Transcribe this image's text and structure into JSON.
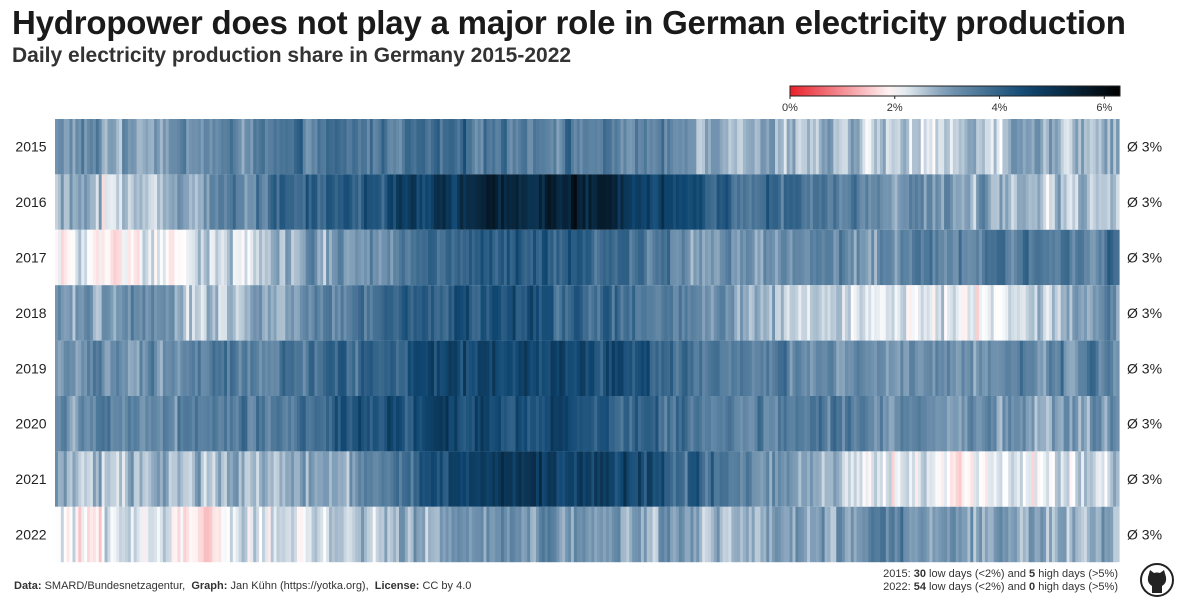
{
  "title": "Hydropower does not play a major role in German electricity production",
  "subtitle": "Daily electricity production share in Germany 2015-2022",
  "legend": {
    "ticks": [
      "0%",
      "2%",
      "4%",
      "6%"
    ],
    "tick_values": [
      0,
      2,
      4,
      6
    ],
    "range": [
      0,
      6.3
    ],
    "colors": {
      "low": "#e8202a",
      "mid": "#ffffff",
      "high": "#000000",
      "steel": "#7797b2",
      "navy": "#104873"
    }
  },
  "chart_data": {
    "type": "heatmap",
    "title": "Hydropower does not play a major role in German electricity production",
    "subtitle": "Daily electricity production share in Germany 2015-2022",
    "xlabel": "",
    "ylabel": "",
    "value_unit": "%",
    "color_range": [
      0,
      6.3
    ],
    "rows": [
      {
        "year": "2015",
        "average": "Ø 3%",
        "monthly_profile": [
          2.9,
          3.2,
          3.4,
          3.6,
          3.7,
          3.6,
          3.3,
          3.0,
          2.6,
          2.4,
          2.6,
          2.8
        ]
      },
      {
        "year": "2016",
        "average": "Ø 3%",
        "monthly_profile": [
          2.1,
          3.0,
          3.8,
          4.2,
          5.0,
          5.5,
          5.1,
          4.0,
          3.6,
          3.2,
          2.9,
          2.6
        ]
      },
      {
        "year": "2017",
        "average": "Ø 3%",
        "monthly_profile": [
          1.8,
          2.1,
          2.8,
          3.3,
          3.9,
          4.0,
          3.6,
          3.1,
          3.3,
          3.2,
          3.4,
          3.7
        ]
      },
      {
        "year": "2018",
        "average": "Ø 3%",
        "monthly_profile": [
          3.4,
          2.6,
          2.8,
          3.6,
          4.3,
          4.2,
          3.6,
          3.0,
          2.5,
          2.2,
          2.1,
          3.0
        ]
      },
      {
        "year": "2019",
        "average": "Ø 3%",
        "monthly_profile": [
          2.9,
          3.3,
          3.5,
          4.0,
          4.6,
          4.6,
          4.4,
          3.5,
          3.2,
          3.0,
          3.2,
          3.4
        ]
      },
      {
        "year": "2020",
        "average": "Ø 3%",
        "monthly_profile": [
          3.1,
          3.4,
          3.6,
          4.2,
          4.5,
          4.4,
          4.0,
          3.5,
          3.5,
          3.3,
          3.2,
          3.1
        ]
      },
      {
        "year": "2021",
        "average": "Ø 3%",
        "monthly_profile": [
          2.5,
          2.8,
          2.6,
          3.2,
          4.6,
          5.0,
          4.6,
          3.6,
          3.0,
          2.1,
          2.0,
          2.4
        ]
      },
      {
        "year": "2022",
        "average": "Ø 3%",
        "monthly_profile": [
          2.3,
          1.9,
          2.2,
          2.6,
          3.0,
          3.2,
          3.0,
          2.8,
          3.0,
          3.2,
          2.9,
          2.8
        ]
      }
    ]
  },
  "footer": {
    "data_label": "Data:",
    "data_value": "SMARD/Bundesnetzagentur,",
    "graph_label": "Graph:",
    "graph_value": "Jan Kühn (https://yotka.org),",
    "license_label": "License:",
    "license_value": "CC by 4.0"
  },
  "notes": [
    {
      "pre": "2015: ",
      "low": "30",
      "mid": " low days (<2%) and ",
      "high": "5",
      "post": " high days (>5%)"
    },
    {
      "pre": "2022: ",
      "low": "54",
      "mid": " low days (<2%) and ",
      "high": "0",
      "post": " high days (>5%)"
    }
  ],
  "logo": {
    "icon": "octocat-logo-icon"
  }
}
